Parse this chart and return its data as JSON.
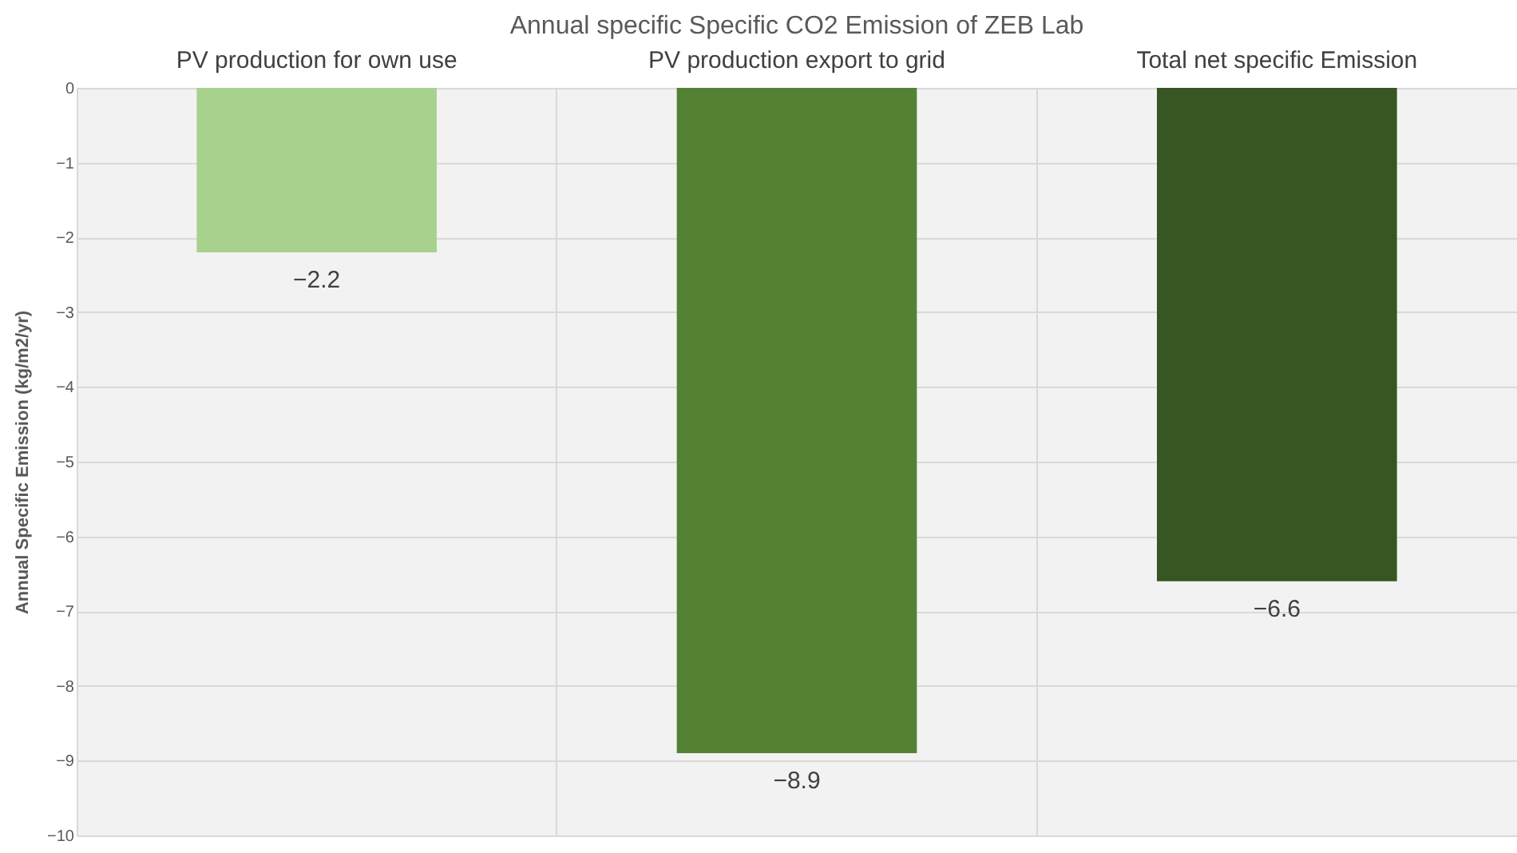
{
  "chart_data": {
    "type": "bar",
    "title": "Annual specific Specific CO2 Emission of ZEB Lab",
    "ylabel": "Annual Specific Emission (kg/m2/yr)",
    "categories": [
      "PV production for own use",
      "PV production export to grid",
      "Total net specific Emission"
    ],
    "values": [
      -2.2,
      -8.9,
      -6.6
    ],
    "colors": [
      "#a9d18e",
      "#548235",
      "#375623"
    ],
    "ylim": [
      -10,
      0
    ],
    "yticks": [
      0,
      -1,
      -2,
      -3,
      -4,
      -5,
      -6,
      -7,
      -8,
      -9,
      -10
    ],
    "grid": true,
    "data_labels": true
  }
}
